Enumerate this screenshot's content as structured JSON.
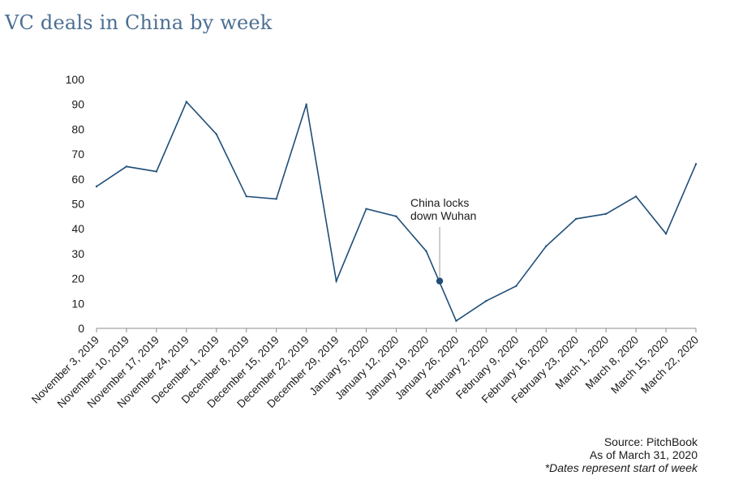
{
  "title": "VC deals in China by week",
  "chart_data": {
    "type": "line",
    "title": "VC deals in China by week",
    "xlabel": "",
    "ylabel": "",
    "ylim": [
      0,
      100
    ],
    "yticks": [
      0,
      10,
      20,
      30,
      40,
      50,
      60,
      70,
      80,
      90,
      100
    ],
    "grid": false,
    "categories": [
      "November 3, 2019",
      "November 10, 2019",
      "November 17, 2019",
      "November 24, 2019",
      "December 1, 2019",
      "December 8, 2019",
      "December 15, 2019",
      "December 22, 2019",
      "December 29, 2019",
      "January 5, 2020",
      "January 12, 2020",
      "January 19, 2020",
      "January 26, 2020",
      "February 2, 2020",
      "February 9, 2020",
      "February 16, 2020",
      "February 23, 2020",
      "March 1, 2020",
      "March 8, 2020",
      "March 15, 2020",
      "March 22, 2020"
    ],
    "series": [
      {
        "name": "",
        "color": "#1f4e79",
        "values": [
          57,
          65,
          63,
          91,
          78,
          53,
          52,
          90,
          19,
          48,
          45,
          31,
          3,
          11,
          17,
          33,
          44,
          46,
          53,
          38,
          66
        ]
      }
    ],
    "annotation": {
      "lines": [
        "China locks",
        "down Wuhan"
      ],
      "x_between": [
        "January 19, 2020",
        "January 26, 2020"
      ],
      "x_fraction": 0.45,
      "y": 19
    }
  },
  "footer": {
    "source": "Source: PitchBook",
    "asof": "As of March 31, 2020",
    "note": "*Dates represent start of week"
  }
}
